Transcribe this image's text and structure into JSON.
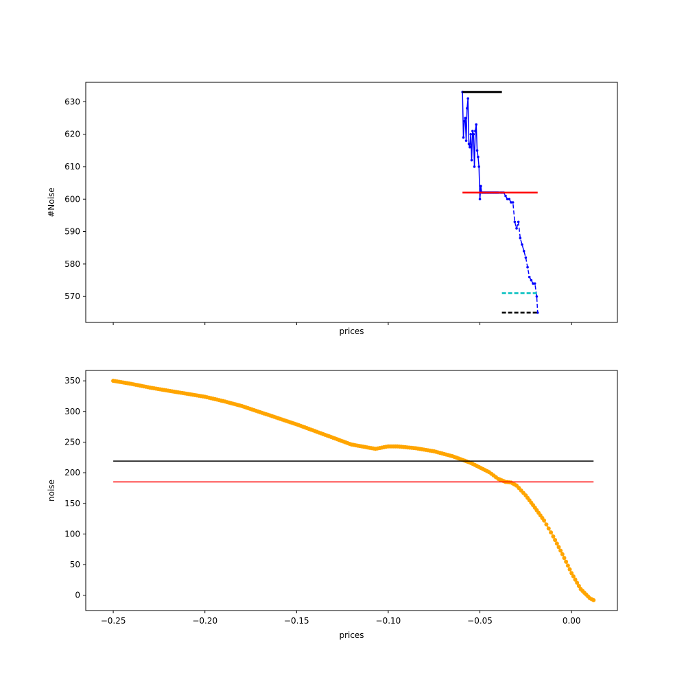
{
  "chart_data": [
    {
      "type": "line",
      "xlabel": "prices",
      "ylabel": "#Noise",
      "xlim": [
        -0.265,
        0.025
      ],
      "ylim": [
        562,
        636
      ],
      "yticks": [
        570,
        580,
        590,
        600,
        610,
        620,
        630
      ],
      "ytick_labels": [
        "570",
        "580",
        "590",
        "600",
        "610",
        "620",
        "630"
      ],
      "xticks": [
        -0.25,
        -0.2,
        -0.15,
        -0.1,
        -0.05,
        0.0
      ],
      "show_xtick_labels": false,
      "grid": false,
      "series": [
        {
          "style": "solid",
          "color": "#0000ff",
          "marker": true,
          "x": [
            -0.0595,
            -0.059,
            -0.0585,
            -0.058,
            -0.0575,
            -0.057,
            -0.0565,
            -0.056,
            -0.0555,
            -0.055,
            -0.0545,
            -0.054,
            -0.0535,
            -0.053,
            -0.0525,
            -0.052,
            -0.0515,
            -0.051,
            -0.0505,
            -0.05,
            -0.0495,
            -0.049,
            -0.0485,
            -0.048,
            -0.0475,
            -0.047,
            -0.0465,
            -0.046,
            -0.0455,
            -0.045,
            -0.0445,
            -0.044,
            -0.0435,
            -0.043,
            -0.0425,
            -0.042,
            -0.0415,
            -0.041,
            -0.0405,
            -0.04,
            -0.039,
            -0.038
          ],
          "y": [
            633,
            619,
            624,
            625,
            618,
            628,
            631,
            617,
            616,
            620,
            612,
            621,
            620,
            610,
            621,
            623,
            615,
            613,
            610,
            600,
            604,
            602,
            602,
            602,
            602,
            602,
            602,
            602,
            602,
            602,
            602,
            602,
            602,
            602,
            602,
            602,
            602,
            602,
            602,
            602,
            602,
            602
          ]
        },
        {
          "style": "dashed",
          "color": "#0000ff",
          "marker": true,
          "x": [
            -0.038,
            -0.037,
            -0.036,
            -0.035,
            -0.034,
            -0.033,
            -0.032,
            -0.031,
            -0.03,
            -0.029,
            -0.028,
            -0.027,
            -0.026,
            -0.025,
            -0.024,
            -0.023,
            -0.022,
            -0.021,
            -0.02,
            -0.019,
            -0.0185
          ],
          "y": [
            602,
            602,
            601,
            600,
            600,
            599,
            599,
            593,
            591,
            593,
            588,
            586,
            584,
            582,
            579,
            576,
            575,
            574,
            574,
            570,
            565
          ]
        },
        {
          "style": "solid",
          "color": "#000000",
          "linewidth": 3,
          "x": [
            -0.0595,
            -0.038
          ],
          "y": [
            633,
            633
          ]
        },
        {
          "style": "solid",
          "color": "#ff0000",
          "linewidth": 2.5,
          "x": [
            -0.0595,
            -0.0185
          ],
          "y": [
            602,
            602
          ]
        },
        {
          "style": "dashed",
          "color": "#00bfbf",
          "linewidth": 2.5,
          "x": [
            -0.038,
            -0.0185
          ],
          "y": [
            571,
            571
          ]
        },
        {
          "style": "dashed",
          "color": "#000000",
          "linewidth": 2.5,
          "x": [
            -0.038,
            -0.0185
          ],
          "y": [
            565,
            565
          ]
        }
      ]
    },
    {
      "type": "line",
      "xlabel": "prices",
      "ylabel": "noise",
      "xlim": [
        -0.265,
        0.025
      ],
      "ylim": [
        -25,
        367
      ],
      "yticks": [
        0,
        50,
        100,
        150,
        200,
        250,
        300,
        350
      ],
      "ytick_labels": [
        "0",
        "50",
        "100",
        "150",
        "200",
        "250",
        "300",
        "350"
      ],
      "xticks": [
        -0.25,
        -0.2,
        -0.15,
        -0.1,
        -0.05,
        0.0
      ],
      "xtick_labels": [
        "−0.25",
        "−0.20",
        "−0.15",
        "−0.10",
        "−0.05",
        "0.00"
      ],
      "grid": false,
      "series": [
        {
          "style": "solid",
          "color": "#ffa500",
          "marker": true,
          "markers_per_unit": 900,
          "x": [
            -0.25,
            -0.24,
            -0.23,
            -0.22,
            -0.21,
            -0.2,
            -0.19,
            -0.18,
            -0.17,
            -0.16,
            -0.15,
            -0.14,
            -0.13,
            -0.12,
            -0.107,
            -0.1,
            -0.095,
            -0.085,
            -0.075,
            -0.065,
            -0.055,
            -0.045,
            -0.04,
            -0.036,
            -0.033,
            -0.03,
            -0.025,
            -0.02,
            -0.015,
            -0.01,
            -0.005,
            0.0,
            0.005,
            0.01,
            0.012
          ],
          "y": [
            350,
            345,
            339,
            334,
            329,
            324,
            317,
            309,
            299,
            289,
            279,
            268,
            257,
            246,
            239,
            243,
            243,
            240,
            235,
            227,
            216,
            201,
            190,
            185,
            184,
            179,
            163,
            143,
            122,
            96,
            67,
            36,
            10,
            -5,
            -8
          ]
        },
        {
          "style": "solid",
          "color": "#000000",
          "linewidth": 1.5,
          "x": [
            -0.25,
            0.012
          ],
          "y": [
            219,
            219
          ]
        },
        {
          "style": "solid",
          "color": "#ff0000",
          "linewidth": 1.5,
          "x": [
            -0.25,
            0.012
          ],
          "y": [
            185,
            185
          ]
        }
      ]
    }
  ]
}
